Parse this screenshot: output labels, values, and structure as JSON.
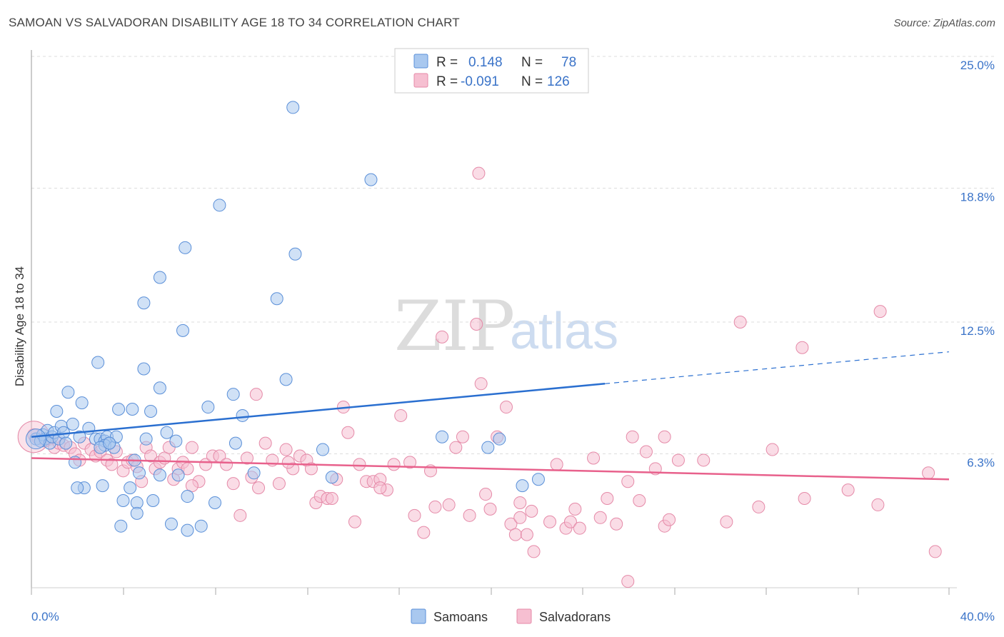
{
  "header": {
    "title": "SAMOAN VS SALVADORAN DISABILITY AGE 18 TO 34 CORRELATION CHART",
    "source": "Source: ZipAtlas.com"
  },
  "watermark": {
    "zip": "ZIP",
    "atlas": "atlas"
  },
  "legend": {
    "rows": [
      {
        "r_label": "R =",
        "r_value": "0.148",
        "n_label": "N =",
        "n_value": "78",
        "color": "#a9c8ef",
        "stroke": "#5a8fd8"
      },
      {
        "r_label": "R =",
        "r_value": "-0.091",
        "n_label": "N =",
        "n_value": "126",
        "color": "#f6bfd1",
        "stroke": "#e58aa8"
      }
    ]
  },
  "bottom_legend": {
    "samoans": "Samoans",
    "salvadorans": "Salvadorans"
  },
  "colors": {
    "samoan_fill": "#a9c8ef",
    "samoan_stroke": "#5a8fd8",
    "samoan_line": "#2a6fd0",
    "salvadoran_fill": "#f6bfd1",
    "salvadoran_stroke": "#e58aa8",
    "salvadoran_line": "#e8618c",
    "grid": "#dddddd",
    "tick_text": "#3a73c8"
  },
  "chart_data": {
    "type": "scatter",
    "title": "SAMOAN VS SALVADORAN DISABILITY AGE 18 TO 34 CORRELATION CHART",
    "xlabel": "",
    "ylabel": "Disability Age 18 to 34",
    "xlim": [
      0,
      40
    ],
    "ylim": [
      0,
      25
    ],
    "x_tick_labels": [
      "0.0%",
      "40.0%"
    ],
    "y_ticks": [
      6.3,
      12.5,
      18.8,
      25.0
    ],
    "y_tick_labels": [
      "6.3%",
      "12.5%",
      "18.8%",
      "25.0%"
    ],
    "grid": "horizontal dashed",
    "legend_placement": "top-center",
    "series": [
      {
        "name": "Samoans",
        "r": 0.148,
        "n": 78,
        "trend": {
          "x0": 0,
          "y0": 7.1,
          "x1": 25,
          "y1": 9.6,
          "dash_to_x": 40,
          "dash_to_y": 11.1
        },
        "points": [
          [
            0.2,
            7.0
          ],
          [
            0.4,
            6.9
          ],
          [
            0.5,
            7.2
          ],
          [
            0.6,
            7.0
          ],
          [
            0.7,
            7.4
          ],
          [
            0.8,
            6.8
          ],
          [
            0.9,
            7.1
          ],
          [
            1.0,
            7.3
          ],
          [
            1.1,
            8.3
          ],
          [
            1.2,
            7.0
          ],
          [
            1.3,
            7.6
          ],
          [
            1.4,
            7.3
          ],
          [
            1.5,
            6.8
          ],
          [
            1.6,
            9.2
          ],
          [
            1.8,
            7.7
          ],
          [
            2.1,
            7.1
          ],
          [
            2.2,
            8.7
          ],
          [
            2.5,
            7.5
          ],
          [
            2.8,
            7.0
          ],
          [
            3.0,
            7.0
          ],
          [
            3.2,
            6.9
          ],
          [
            3.3,
            7.1
          ],
          [
            3.4,
            6.8
          ],
          [
            2.9,
            10.6
          ],
          [
            3.8,
            8.4
          ],
          [
            4.4,
            8.4
          ],
          [
            5.2,
            8.3
          ],
          [
            5.0,
            7.0
          ],
          [
            4.5,
            6.0
          ],
          [
            4.0,
            4.1
          ],
          [
            3.9,
            2.9
          ],
          [
            4.6,
            4.0
          ],
          [
            4.3,
            4.7
          ],
          [
            3.1,
            4.8
          ],
          [
            2.3,
            4.7
          ],
          [
            2.0,
            4.7
          ],
          [
            1.9,
            5.9
          ],
          [
            3.2,
            6.7
          ],
          [
            3.6,
            6.6
          ],
          [
            4.9,
            13.4
          ],
          [
            5.6,
            9.4
          ],
          [
            6.6,
            12.1
          ],
          [
            5.9,
            7.3
          ],
          [
            6.3,
            6.9
          ],
          [
            7.7,
            8.5
          ],
          [
            8.8,
            9.1
          ],
          [
            9.2,
            8.1
          ],
          [
            8.9,
            6.8
          ],
          [
            9.7,
            5.4
          ],
          [
            8.0,
            4.0
          ],
          [
            7.4,
            2.9
          ],
          [
            6.8,
            2.7
          ],
          [
            6.8,
            4.3
          ],
          [
            6.1,
            3.0
          ],
          [
            5.6,
            5.3
          ],
          [
            6.4,
            5.3
          ],
          [
            5.3,
            4.1
          ],
          [
            8.2,
            18.0
          ],
          [
            11.4,
            22.6
          ],
          [
            14.8,
            19.2
          ],
          [
            6.7,
            16.0
          ],
          [
            5.6,
            14.6
          ],
          [
            11.5,
            15.7
          ],
          [
            10.7,
            13.6
          ],
          [
            11.1,
            9.8
          ],
          [
            4.9,
            10.3
          ],
          [
            12.7,
            6.5
          ],
          [
            13.1,
            5.2
          ],
          [
            17.9,
            7.1
          ],
          [
            19.9,
            6.6
          ],
          [
            20.4,
            7.0
          ],
          [
            21.4,
            4.8
          ],
          [
            22.1,
            5.1
          ],
          [
            4.6,
            3.5
          ],
          [
            3.7,
            7.1
          ],
          [
            3.0,
            6.6
          ],
          [
            4.7,
            5.4
          ],
          [
            3.4,
            6.8
          ]
        ]
      },
      {
        "name": "Salvadorans",
        "r": -0.091,
        "n": 126,
        "trend": {
          "x0": 0,
          "y0": 6.1,
          "x1": 40,
          "y1": 5.1
        },
        "points": [
          [
            0.1,
            7.2
          ],
          [
            0.3,
            7.0
          ],
          [
            0.6,
            6.9
          ],
          [
            0.8,
            7.0
          ],
          [
            1.0,
            6.6
          ],
          [
            1.2,
            6.8
          ],
          [
            1.4,
            6.7
          ],
          [
            1.7,
            6.6
          ],
          [
            1.9,
            6.3
          ],
          [
            2.1,
            6.0
          ],
          [
            2.3,
            6.8
          ],
          [
            2.6,
            6.5
          ],
          [
            2.8,
            6.2
          ],
          [
            3.0,
            6.4
          ],
          [
            3.3,
            6.0
          ],
          [
            3.5,
            5.8
          ],
          [
            3.7,
            6.4
          ],
          [
            4.0,
            5.5
          ],
          [
            4.2,
            5.9
          ],
          [
            4.4,
            6.0
          ],
          [
            4.6,
            5.7
          ],
          [
            4.8,
            5.0
          ],
          [
            5.0,
            6.6
          ],
          [
            5.2,
            6.2
          ],
          [
            5.4,
            5.6
          ],
          [
            5.6,
            5.9
          ],
          [
            5.8,
            6.1
          ],
          [
            6.0,
            6.6
          ],
          [
            6.2,
            5.1
          ],
          [
            6.4,
            5.6
          ],
          [
            6.6,
            5.9
          ],
          [
            6.8,
            5.6
          ],
          [
            7.0,
            6.6
          ],
          [
            7.3,
            5.0
          ],
          [
            7.6,
            5.8
          ],
          [
            7.9,
            6.2
          ],
          [
            8.2,
            6.2
          ],
          [
            8.5,
            5.8
          ],
          [
            8.8,
            4.9
          ],
          [
            9.1,
            3.4
          ],
          [
            9.4,
            6.1
          ],
          [
            9.6,
            5.2
          ],
          [
            9.9,
            4.7
          ],
          [
            10.2,
            6.8
          ],
          [
            10.5,
            6.0
          ],
          [
            10.8,
            4.9
          ],
          [
            11.1,
            6.5
          ],
          [
            11.4,
            5.6
          ],
          [
            11.7,
            6.2
          ],
          [
            12.0,
            6.0
          ],
          [
            12.2,
            5.6
          ],
          [
            12.4,
            4.0
          ],
          [
            12.6,
            4.3
          ],
          [
            12.9,
            4.2
          ],
          [
            13.1,
            4.2
          ],
          [
            13.3,
            5.1
          ],
          [
            13.6,
            8.5
          ],
          [
            13.8,
            7.3
          ],
          [
            14.1,
            3.1
          ],
          [
            14.3,
            5.8
          ],
          [
            14.6,
            5.0
          ],
          [
            14.9,
            5.0
          ],
          [
            15.2,
            5.1
          ],
          [
            15.5,
            4.6
          ],
          [
            15.8,
            5.8
          ],
          [
            16.1,
            8.1
          ],
          [
            16.5,
            5.9
          ],
          [
            16.7,
            3.4
          ],
          [
            17.1,
            2.6
          ],
          [
            17.4,
            5.5
          ],
          [
            17.6,
            3.8
          ],
          [
            17.9,
            11.8
          ],
          [
            18.2,
            3.9
          ],
          [
            18.5,
            6.6
          ],
          [
            18.8,
            7.1
          ],
          [
            19.1,
            3.4
          ],
          [
            19.4,
            12.4
          ],
          [
            19.6,
            9.6
          ],
          [
            20.0,
            3.7
          ],
          [
            19.8,
            4.4
          ],
          [
            20.3,
            7.1
          ],
          [
            20.7,
            8.5
          ],
          [
            20.9,
            3.0
          ],
          [
            21.1,
            2.5
          ],
          [
            21.3,
            4.0
          ],
          [
            21.6,
            2.5
          ],
          [
            21.8,
            3.6
          ],
          [
            21.9,
            1.7
          ],
          [
            22.6,
            3.1
          ],
          [
            22.9,
            5.8
          ],
          [
            23.3,
            2.8
          ],
          [
            23.5,
            3.1
          ],
          [
            23.7,
            3.7
          ],
          [
            23.9,
            2.8
          ],
          [
            24.5,
            6.1
          ],
          [
            24.8,
            3.3
          ],
          [
            25.1,
            4.2
          ],
          [
            25.5,
            3.0
          ],
          [
            26.0,
            5.0
          ],
          [
            26.2,
            7.1
          ],
          [
            26.5,
            4.1
          ],
          [
            26.8,
            6.4
          ],
          [
            27.2,
            5.6
          ],
          [
            27.6,
            2.9
          ],
          [
            27.8,
            3.2
          ],
          [
            27.6,
            7.1
          ],
          [
            28.2,
            6.0
          ],
          [
            26.0,
            0.3
          ],
          [
            29.3,
            6.0
          ],
          [
            30.3,
            3.1
          ],
          [
            30.9,
            12.5
          ],
          [
            31.7,
            3.8
          ],
          [
            32.3,
            6.5
          ],
          [
            33.7,
            4.2
          ],
          [
            33.6,
            11.3
          ],
          [
            35.6,
            4.6
          ],
          [
            36.9,
            3.9
          ],
          [
            37.0,
            13.0
          ],
          [
            39.1,
            5.4
          ],
          [
            39.4,
            1.7
          ],
          [
            19.5,
            19.5
          ],
          [
            21.3,
            3.3
          ],
          [
            9.8,
            9.1
          ],
          [
            15.2,
            4.7
          ],
          [
            7.0,
            4.8
          ],
          [
            11.2,
            5.9
          ]
        ]
      }
    ]
  }
}
